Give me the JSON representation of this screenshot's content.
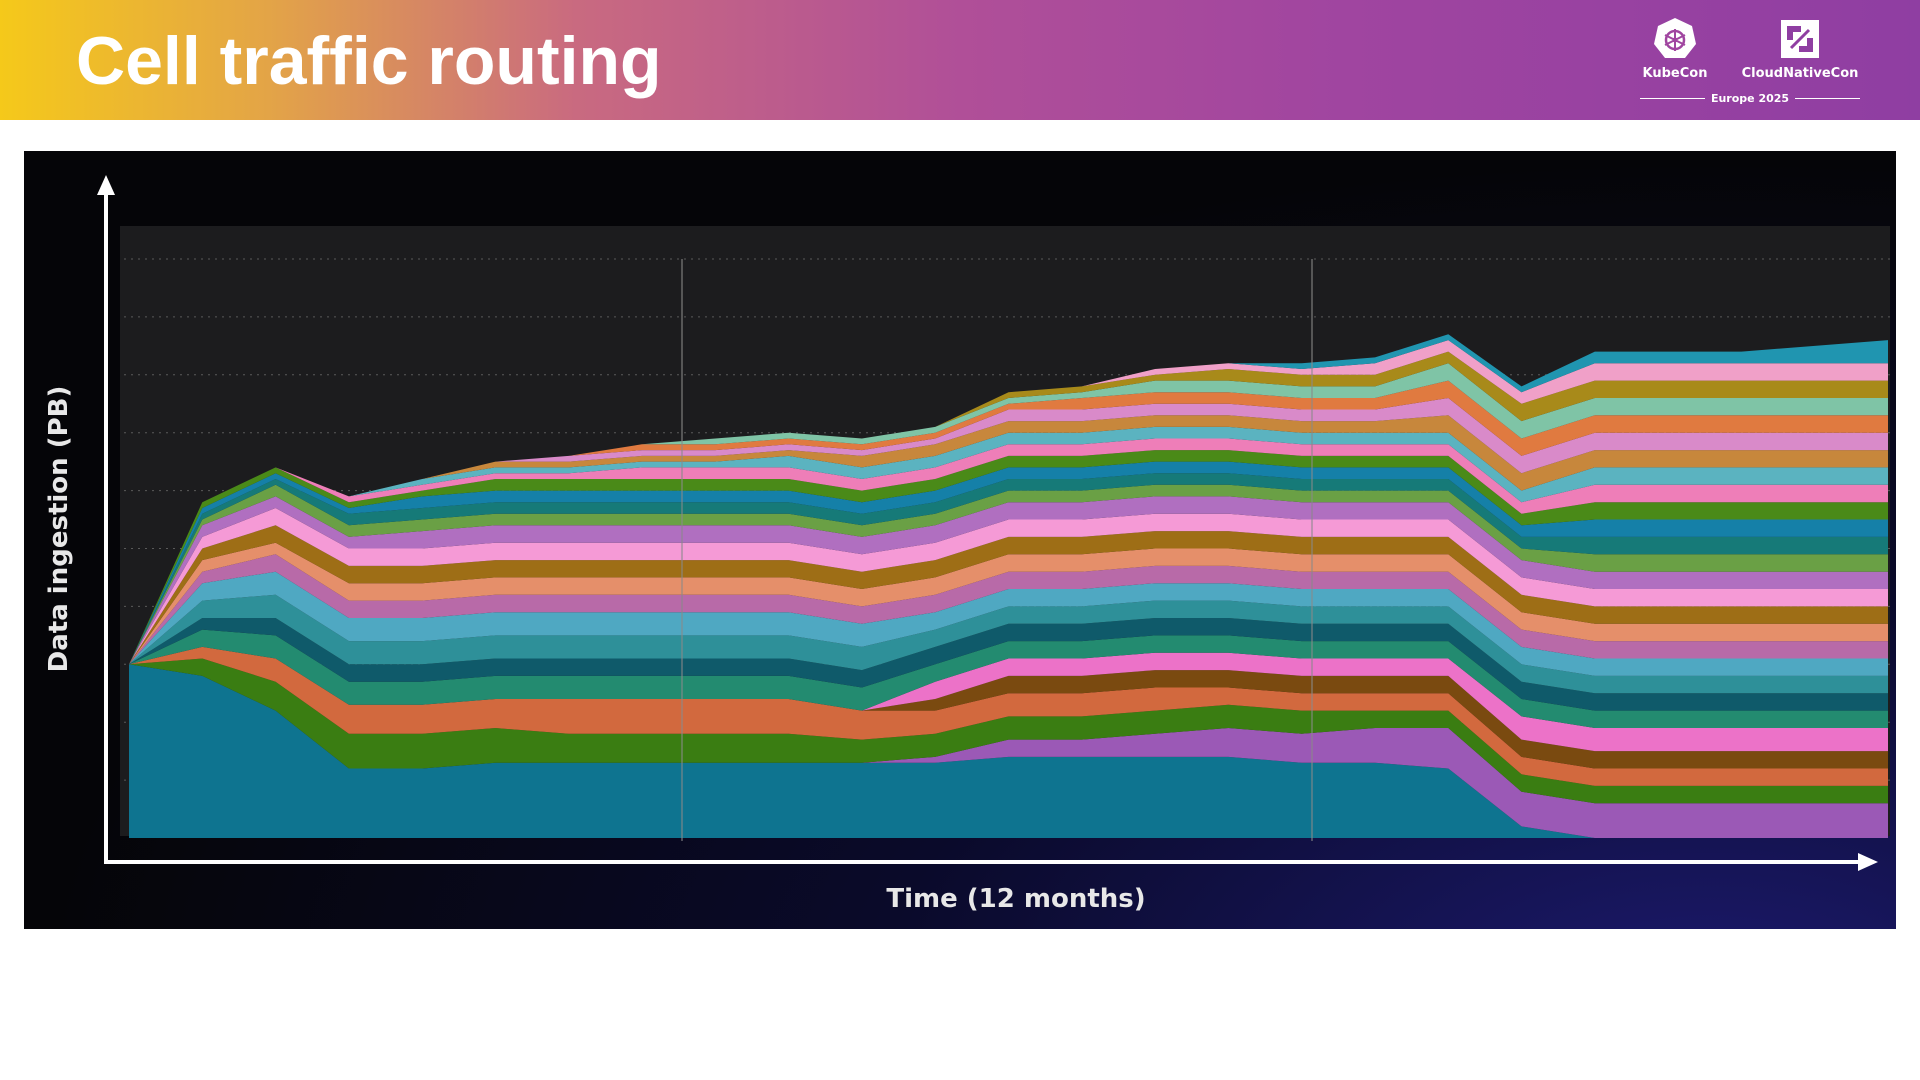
{
  "slide": {
    "title": "Cell traffic routing",
    "logos": {
      "kubecon": {
        "label": "KubeCon",
        "icon": "kubernetes-helm-icon"
      },
      "cncf": {
        "label": "CloudNativeCon",
        "icon": "cncf-icon"
      },
      "event": "Europe 2025"
    }
  },
  "chart_data": {
    "type": "area",
    "stacked": true,
    "xlabel": "Time (12 months)",
    "ylabel": "Data ingestion (PB)",
    "grid": true,
    "x": [
      0,
      0.5,
      1,
      1.5,
      2,
      2.5,
      3,
      3.5,
      4,
      4.5,
      5,
      5.5,
      6,
      6.5,
      7,
      7.5,
      8,
      8.5,
      9,
      9.5,
      10,
      10.5,
      11,
      11.5,
      12
    ],
    "ylim": [
      0,
      100
    ],
    "series": [
      {
        "color": "#0e7490",
        "values": [
          30,
          28,
          22,
          12,
          12,
          13,
          13,
          13,
          13,
          13,
          13,
          13,
          14,
          14,
          14,
          14,
          13,
          13,
          12,
          2,
          0,
          0,
          0,
          0,
          0
        ]
      },
      {
        "color": "#9b59b6",
        "values": [
          0,
          0,
          0,
          0,
          0,
          0,
          0,
          0,
          0,
          0,
          0,
          1,
          3,
          3,
          4,
          5,
          5,
          6,
          7,
          6,
          6,
          6,
          6,
          6,
          6
        ]
      },
      {
        "color": "#3a7d12",
        "values": [
          0,
          3,
          5,
          6,
          6,
          6,
          5,
          5,
          5,
          5,
          4,
          4,
          4,
          4,
          4,
          4,
          4,
          3,
          3,
          3,
          3,
          3,
          3,
          3,
          3
        ]
      },
      {
        "color": "#d2693e",
        "values": [
          0,
          2,
          4,
          5,
          5,
          5,
          6,
          6,
          6,
          6,
          5,
          4,
          4,
          4,
          4,
          3,
          3,
          3,
          3,
          3,
          3,
          3,
          3,
          3,
          3
        ]
      },
      {
        "color": "#7a4a10",
        "values": [
          0,
          0,
          0,
          0,
          0,
          0,
          0,
          0,
          0,
          0,
          0,
          2,
          3,
          3,
          3,
          3,
          3,
          3,
          3,
          3,
          3,
          3,
          3,
          3,
          3
        ]
      },
      {
        "color": "#ec72c8",
        "values": [
          0,
          0,
          0,
          0,
          0,
          0,
          0,
          0,
          0,
          0,
          0,
          3,
          3,
          3,
          3,
          3,
          3,
          3,
          3,
          4,
          4,
          4,
          4,
          4,
          4
        ]
      },
      {
        "color": "#238b70",
        "values": [
          0,
          3,
          4,
          4,
          4,
          4,
          4,
          4,
          4,
          4,
          4,
          3,
          3,
          3,
          3,
          3,
          3,
          3,
          3,
          3,
          3,
          3,
          3,
          3,
          3
        ]
      },
      {
        "color": "#0f5a6a",
        "values": [
          0,
          2,
          3,
          3,
          3,
          3,
          3,
          3,
          3,
          3,
          3,
          3,
          3,
          3,
          3,
          3,
          3,
          3,
          3,
          3,
          3,
          3,
          3,
          3,
          3
        ]
      },
      {
        "color": "#2e9099",
        "values": [
          0,
          3,
          4,
          4,
          4,
          4,
          4,
          4,
          4,
          4,
          4,
          3,
          3,
          3,
          3,
          3,
          3,
          3,
          3,
          3,
          3,
          3,
          3,
          3,
          3
        ]
      },
      {
        "color": "#4fa8c2",
        "values": [
          0,
          3,
          4,
          4,
          4,
          4,
          4,
          4,
          4,
          4,
          4,
          3,
          3,
          3,
          3,
          3,
          3,
          3,
          3,
          3,
          3,
          3,
          3,
          3,
          3
        ]
      },
      {
        "color": "#b86aa8",
        "values": [
          0,
          2,
          3,
          3,
          3,
          3,
          3,
          3,
          3,
          3,
          3,
          3,
          3,
          3,
          3,
          3,
          3,
          3,
          3,
          3,
          3,
          3,
          3,
          3,
          3
        ]
      },
      {
        "color": "#e58f6a",
        "values": [
          0,
          2,
          2,
          3,
          3,
          3,
          3,
          3,
          3,
          3,
          3,
          3,
          3,
          3,
          3,
          3,
          3,
          3,
          3,
          3,
          3,
          3,
          3,
          3,
          3
        ]
      },
      {
        "color": "#9e6e16",
        "values": [
          0,
          2,
          3,
          3,
          3,
          3,
          3,
          3,
          3,
          3,
          3,
          3,
          3,
          3,
          3,
          3,
          3,
          3,
          3,
          3,
          3,
          3,
          3,
          3,
          3
        ]
      },
      {
        "color": "#f59ad6",
        "values": [
          0,
          2,
          3,
          3,
          3,
          3,
          3,
          3,
          3,
          3,
          3,
          3,
          3,
          3,
          3,
          3,
          3,
          3,
          3,
          3,
          3,
          3,
          3,
          3,
          3
        ]
      },
      {
        "color": "#b06fc0",
        "values": [
          0,
          2,
          2,
          2,
          3,
          3,
          3,
          3,
          3,
          3,
          3,
          3,
          3,
          3,
          3,
          3,
          3,
          3,
          3,
          3,
          3,
          3,
          3,
          3,
          3
        ]
      },
      {
        "color": "#6aa045",
        "values": [
          0,
          1,
          2,
          2,
          2,
          2,
          2,
          2,
          2,
          2,
          2,
          2,
          2,
          2,
          2,
          2,
          2,
          2,
          2,
          2,
          3,
          3,
          3,
          3,
          3
        ]
      },
      {
        "color": "#167a78",
        "values": [
          0,
          1,
          1,
          2,
          2,
          2,
          2,
          2,
          2,
          2,
          2,
          2,
          2,
          2,
          2,
          2,
          2,
          2,
          2,
          2,
          3,
          3,
          3,
          3,
          3
        ]
      },
      {
        "color": "#1580a8",
        "values": [
          0,
          1,
          1,
          1,
          2,
          2,
          2,
          2,
          2,
          2,
          2,
          2,
          2,
          2,
          2,
          2,
          2,
          2,
          2,
          2,
          3,
          3,
          3,
          3,
          3
        ]
      },
      {
        "color": "#4a8a18",
        "values": [
          0,
          1,
          1,
          1,
          1,
          2,
          2,
          2,
          2,
          2,
          2,
          2,
          2,
          2,
          2,
          2,
          2,
          2,
          2,
          2,
          3,
          3,
          3,
          3,
          3
        ]
      },
      {
        "color": "#ee7eb8",
        "values": [
          0,
          0,
          0,
          1,
          1,
          1,
          1,
          2,
          2,
          2,
          2,
          2,
          2,
          2,
          2,
          2,
          2,
          2,
          2,
          2,
          3,
          3,
          3,
          3,
          3
        ]
      },
      {
        "color": "#5bb3c0",
        "values": [
          0,
          0,
          0,
          0,
          1,
          1,
          1,
          1,
          1,
          2,
          2,
          2,
          2,
          2,
          2,
          2,
          2,
          2,
          2,
          2,
          3,
          3,
          3,
          3,
          3
        ]
      },
      {
        "color": "#c7873c",
        "values": [
          0,
          0,
          0,
          0,
          0,
          1,
          1,
          1,
          1,
          1,
          2,
          2,
          2,
          2,
          2,
          2,
          2,
          2,
          3,
          3,
          3,
          3,
          3,
          3,
          3
        ]
      },
      {
        "color": "#d98ac9",
        "values": [
          0,
          0,
          0,
          0,
          0,
          0,
          1,
          1,
          1,
          1,
          1,
          1,
          2,
          2,
          2,
          2,
          2,
          2,
          3,
          3,
          3,
          3,
          3,
          3,
          3
        ]
      },
      {
        "color": "#e07a40",
        "values": [
          0,
          0,
          0,
          0,
          0,
          0,
          0,
          1,
          1,
          1,
          1,
          1,
          1,
          2,
          2,
          2,
          2,
          2,
          3,
          3,
          3,
          3,
          3,
          3,
          3
        ]
      },
      {
        "color": "#7fc4a6",
        "values": [
          0,
          0,
          0,
          0,
          0,
          0,
          0,
          0,
          1,
          1,
          1,
          1,
          1,
          1,
          2,
          2,
          2,
          2,
          3,
          3,
          3,
          3,
          3,
          3,
          3
        ]
      },
      {
        "color": "#a88a1a",
        "values": [
          0,
          0,
          0,
          0,
          0,
          0,
          0,
          0,
          0,
          0,
          0,
          0,
          1,
          1,
          1,
          2,
          2,
          2,
          2,
          3,
          3,
          3,
          3,
          3,
          3
        ]
      },
      {
        "color": "#f0a0c8",
        "values": [
          0,
          0,
          0,
          0,
          0,
          0,
          0,
          0,
          0,
          0,
          0,
          0,
          0,
          0,
          1,
          1,
          1,
          2,
          2,
          2,
          3,
          3,
          3,
          3,
          3
        ]
      },
      {
        "color": "#2095b0",
        "values": [
          0,
          0,
          0,
          0,
          0,
          0,
          0,
          0,
          0,
          0,
          0,
          0,
          0,
          0,
          0,
          0,
          1,
          1,
          1,
          1,
          2,
          2,
          2,
          3,
          4
        ]
      }
    ]
  }
}
